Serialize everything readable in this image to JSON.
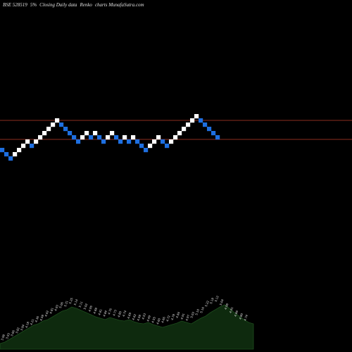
{
  "header": {
    "symbol": "BSE 528519",
    "brick_size": "5%",
    "description": "Closing Daily data",
    "chart_kind": "Renko",
    "brand": "charts MunafaSutra.com"
  },
  "chart_data": {
    "type": "renko",
    "title": "BSE 528519 5% Closing Daily data Renko charts MunafaSutra.com",
    "colors": {
      "up": "#ffffff",
      "down": "#1e6fe0",
      "level_line": "#8b2e1e",
      "volume_fill": "#0e2a0e",
      "background": "#000000"
    },
    "bricks": [
      {
        "dir": "down",
        "level": 22
      },
      {
        "dir": "down",
        "level": 21
      },
      {
        "dir": "down",
        "level": 20
      },
      {
        "dir": "up",
        "level": 21
      },
      {
        "dir": "up",
        "level": 22
      },
      {
        "dir": "up",
        "level": 23
      },
      {
        "dir": "up",
        "level": 24
      },
      {
        "dir": "down",
        "level": 23
      },
      {
        "dir": "up",
        "level": 24
      },
      {
        "dir": "up",
        "level": 25
      },
      {
        "dir": "up",
        "level": 26
      },
      {
        "dir": "up",
        "level": 27
      },
      {
        "dir": "up",
        "level": 28
      },
      {
        "dir": "up",
        "level": 29
      },
      {
        "dir": "down",
        "level": 28
      },
      {
        "dir": "down",
        "level": 27
      },
      {
        "dir": "down",
        "level": 26
      },
      {
        "dir": "down",
        "level": 25
      },
      {
        "dir": "down",
        "level": 24
      },
      {
        "dir": "up",
        "level": 25
      },
      {
        "dir": "up",
        "level": 26
      },
      {
        "dir": "down",
        "level": 25
      },
      {
        "dir": "up",
        "level": 26
      },
      {
        "dir": "down",
        "level": 25
      },
      {
        "dir": "down",
        "level": 24
      },
      {
        "dir": "up",
        "level": 25
      },
      {
        "dir": "up",
        "level": 26
      },
      {
        "dir": "down",
        "level": 25
      },
      {
        "dir": "down",
        "level": 24
      },
      {
        "dir": "up",
        "level": 25
      },
      {
        "dir": "down",
        "level": 24
      },
      {
        "dir": "up",
        "level": 25
      },
      {
        "dir": "down",
        "level": 24
      },
      {
        "dir": "down",
        "level": 23
      },
      {
        "dir": "down",
        "level": 22
      },
      {
        "dir": "up",
        "level": 23
      },
      {
        "dir": "up",
        "level": 24
      },
      {
        "dir": "up",
        "level": 25
      },
      {
        "dir": "down",
        "level": 24
      },
      {
        "dir": "down",
        "level": 23
      },
      {
        "dir": "up",
        "level": 24
      },
      {
        "dir": "up",
        "level": 25
      },
      {
        "dir": "up",
        "level": 26
      },
      {
        "dir": "up",
        "level": 27
      },
      {
        "dir": "up",
        "level": 28
      },
      {
        "dir": "up",
        "level": 29
      },
      {
        "dir": "up",
        "level": 30
      },
      {
        "dir": "down",
        "level": 29
      },
      {
        "dir": "down",
        "level": 28
      },
      {
        "dir": "down",
        "level": 27
      },
      {
        "dir": "down",
        "level": 26
      },
      {
        "dir": "down",
        "level": 25
      }
    ],
    "level_lines": [
      29,
      24.5
    ],
    "volume_profile": [
      8,
      10,
      14,
      18,
      22,
      26,
      30,
      34,
      36,
      40,
      42,
      46,
      50,
      54,
      56,
      60,
      58,
      55,
      52,
      49,
      46,
      44,
      42,
      45,
      43,
      41,
      40,
      42,
      39,
      37,
      36,
      38,
      35,
      33,
      31,
      33,
      35,
      37,
      40,
      38,
      36,
      40,
      44,
      47,
      52,
      56,
      60,
      63,
      58,
      52,
      47,
      42,
      38,
      36
    ],
    "volume_labels": [
      "3.98",
      "3.93",
      "3.66",
      "3.82",
      "3.94",
      "4.18",
      "4.21",
      "4.36",
      "4.58",
      "4.62",
      "4.81",
      "4.93",
      "5.06",
      "5.31",
      "5.25",
      "5.14",
      "5.11",
      "5.02",
      "4.95",
      "4.88",
      "4.81",
      "4.84",
      "4.76",
      "4.73",
      "4.80",
      "4.74",
      "4.69",
      "4.62",
      "4.58",
      "4.53",
      "4.49",
      "4.55",
      "4.60",
      "4.66",
      "4.72",
      "4.78",
      "4.84",
      "4.91",
      "4.97",
      "5.03",
      "5.10",
      "5.16",
      "5.22",
      "5.18",
      "5.12",
      "5.04",
      "4.98",
      "4.91",
      "4.86",
      "4.80",
      "4.74"
    ]
  }
}
